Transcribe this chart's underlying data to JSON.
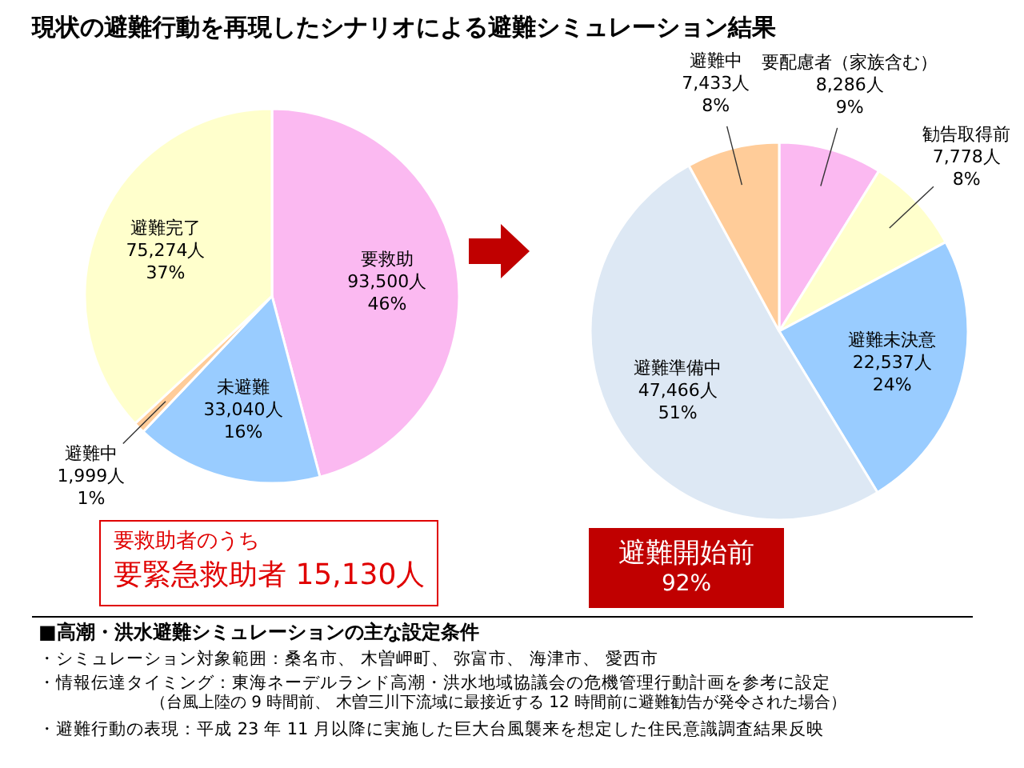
{
  "chart_data": [
    {
      "type": "pie",
      "title": "現状の避難行動を再現したシナリオによる避難シミュレーション結果",
      "categories": [
        "要救助",
        "未避難",
        "避難中",
        "避難完了"
      ],
      "values": [
        93500,
        33040,
        1999,
        75274
      ],
      "colors": [
        "#fbb9f1",
        "#99ccff",
        "#ffcc99",
        "#ffffcc"
      ],
      "value_labels": [
        "93,500人\n46%",
        "33,040人\n16%",
        "1,999人\n1%",
        "75,274人\n37%"
      ],
      "annotations": [
        "要救助者のうち",
        "要緊急救助者 15,130人"
      ]
    },
    {
      "type": "pie",
      "categories": [
        "要配慮者（家族含む）",
        "勧告取得前",
        "避難未決意",
        "避難準備中",
        "避難中"
      ],
      "values": [
        8286,
        7778,
        22537,
        47466,
        7433
      ],
      "colors": [
        "#fbb9f1",
        "#ffffcc",
        "#99ccff",
        "#dde8f4",
        "#ffcc99"
      ],
      "value_labels": [
        "8,286人\n9%",
        "7,778人\n8%",
        "22,537人\n24%",
        "47,466人\n51%",
        "7,433人\n8%"
      ],
      "annotations": [
        "避難開始前",
        "92%",
        "■高潮・洪水避難シミュレーションの主な設定条件",
        "・シミュレーション対象範囲：桑名市、 木曽岬町、 弥富市、 海津市、 愛西市",
        "・情報伝達タイミング：東海ネーデルランド高潮・洪水地域協議会の危機管理行動計画を参考に設定",
        "（台風上陸の 9 時間前、 木曽三川下流域に最接近する 12 時間前に避難勧告が発令された場合）",
        "・避難行動の表現：平成 23 年 11 月以降に実施した巨大台風襲来を想定した住民意識調査結果反映"
      ]
    }
  ]
}
